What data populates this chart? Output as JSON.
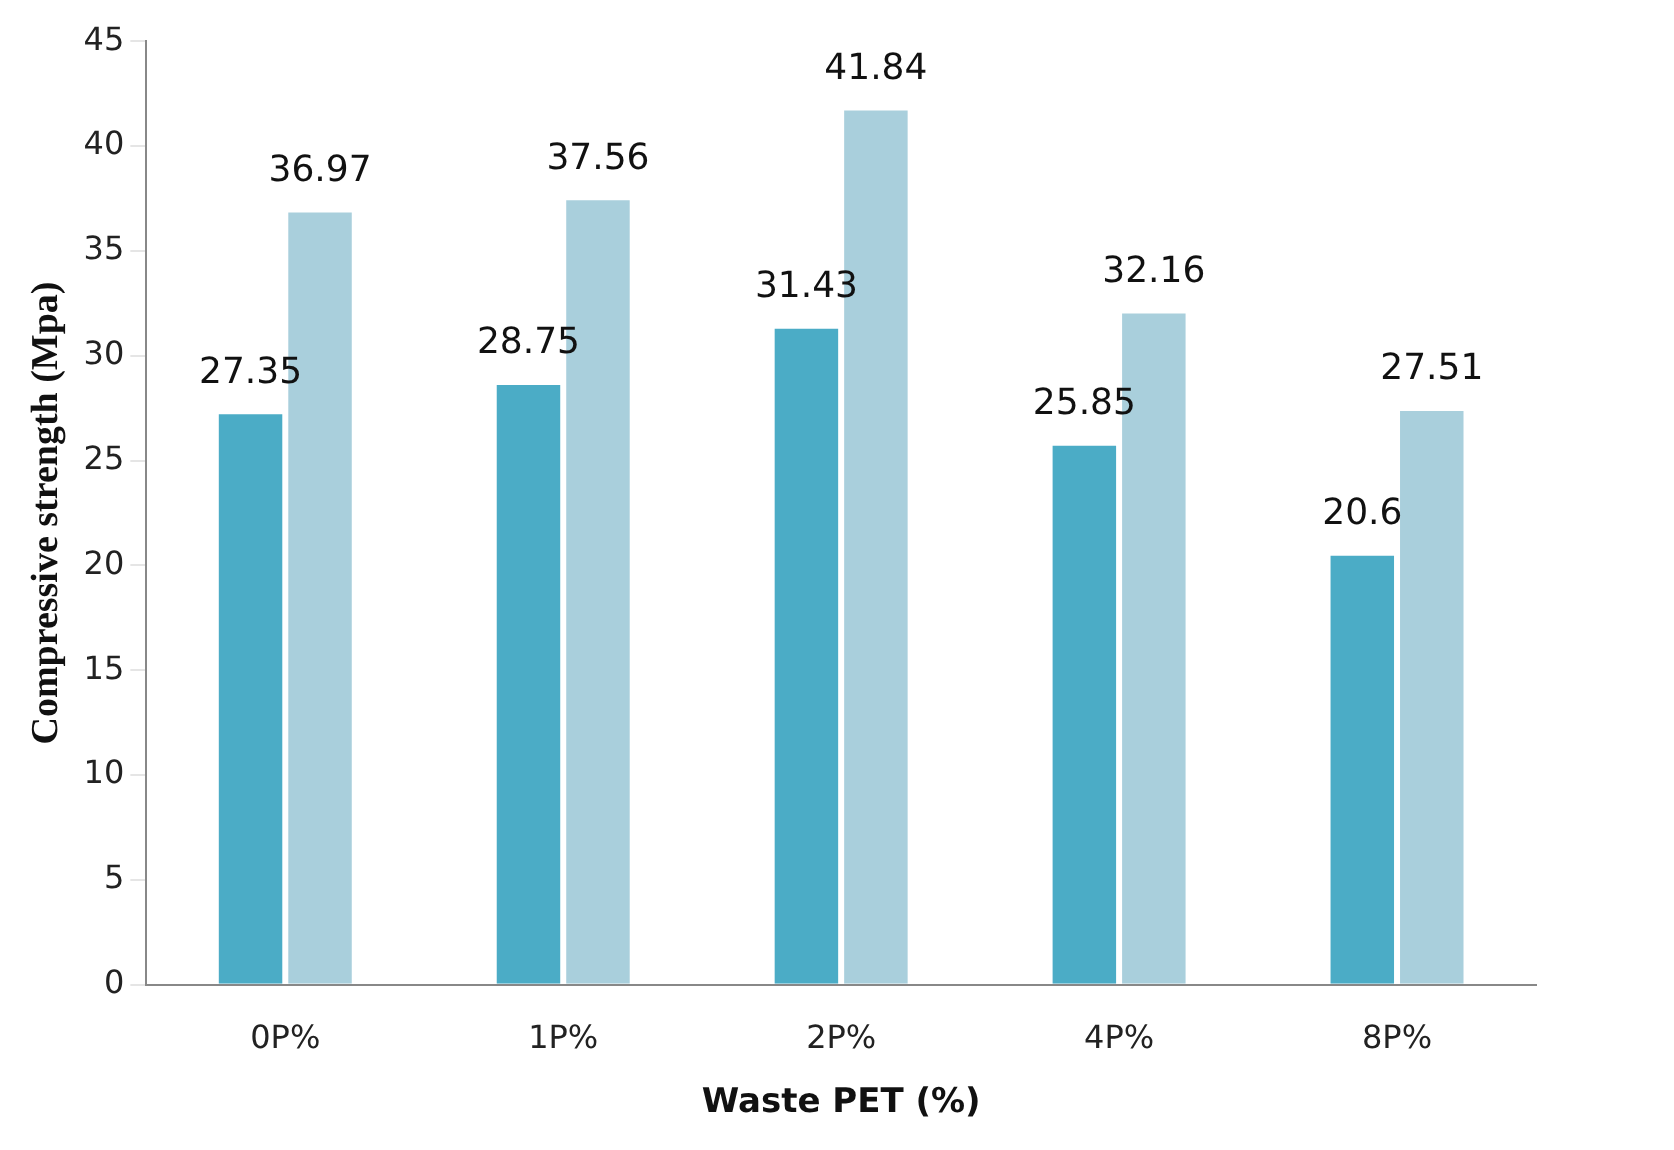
{
  "chart_data": {
    "type": "bar",
    "xlabel": "Waste PET (%)",
    "ylabel": "Compressive strength (Mpa)",
    "categories": [
      "0P%",
      "1P%",
      "2P%",
      "4P%",
      "8P%"
    ],
    "series": [
      {
        "color": "#4bacc6",
        "values": [
          27.35,
          28.75,
          31.43,
          25.85,
          20.6
        ]
      },
      {
        "color": "#a9cfdc",
        "values": [
          36.97,
          37.56,
          41.84,
          32.16,
          27.51
        ]
      }
    ],
    "ylim": [
      0,
      45
    ],
    "yticks": [
      0,
      5,
      10,
      15,
      20,
      25,
      30,
      35,
      40,
      45
    ],
    "grid": false,
    "legend": false,
    "data_labels": true
  }
}
